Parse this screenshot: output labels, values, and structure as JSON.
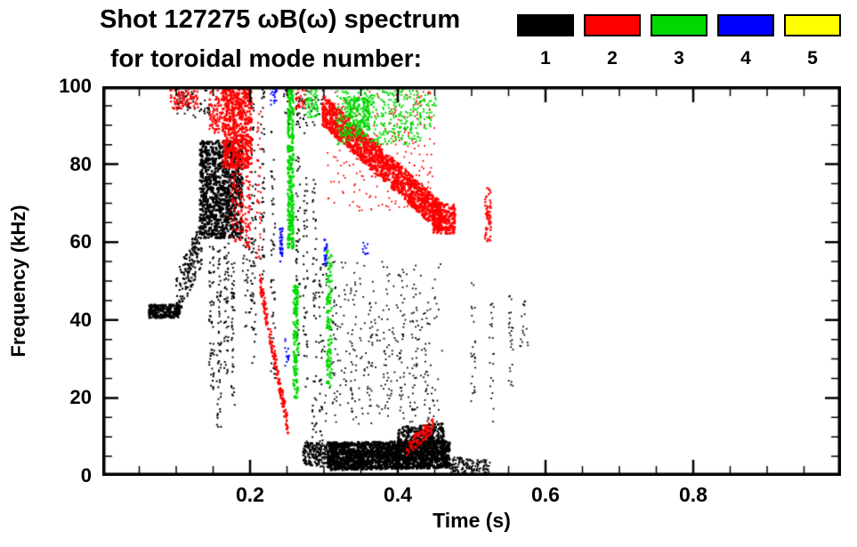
{
  "title": {
    "line1": "Shot 127275 ωB(ω) spectrum",
    "line2": "for toroidal mode number:"
  },
  "chart_data": {
    "type": "scatter",
    "title": "Shot 127275 ωB(ω) spectrum for toroidal mode number",
    "xlabel": "Time (s)",
    "ylabel": "Frequency (kHz)",
    "xlim": [
      0,
      1
    ],
    "ylim": [
      0,
      100
    ],
    "xticks": [
      0.2,
      0.4,
      0.6,
      0.8
    ],
    "xtick_labels": [
      "0.2",
      "0.4",
      "0.6",
      "0.8"
    ],
    "yticks": [
      0,
      20,
      40,
      60,
      80,
      100
    ],
    "ytick_labels": [
      "0",
      "20",
      "40",
      "60",
      "80",
      "100"
    ],
    "xminor_step": 0.05,
    "yminor_step": 5,
    "grid": false,
    "legend_position": "top-right",
    "series": [
      {
        "name": "1",
        "color": "#000000",
        "clusters": [
          {
            "sh": "cloud",
            "t": [
              0.063,
              0.105
            ],
            "f": [
              40.5,
              44
            ],
            "n": 300,
            "s": 2.2
          },
          {
            "sh": "band",
            "t": [
              0.1,
              0.135
            ],
            "fc": [
              46,
              60
            ],
            "w": 12,
            "n": 170,
            "s": 2.2
          },
          {
            "sh": "cloud",
            "t": [
              0.132,
              0.19
            ],
            "f": [
              61,
              86
            ],
            "n": 1000,
            "s": 2.6
          },
          {
            "sh": "cloud",
            "t": [
              0.1,
              0.145
            ],
            "f": [
              92,
              100
            ],
            "n": 70,
            "s": 2
          },
          {
            "sh": "vline",
            "tc": 0.148,
            "f": [
              22,
              60
            ],
            "j": 0.0035,
            "n": 55,
            "s": 2
          },
          {
            "sh": "vline",
            "tc": 0.158,
            "f": [
              12,
              58
            ],
            "j": 0.003,
            "n": 60,
            "s": 2
          },
          {
            "sh": "vline",
            "tc": 0.168,
            "f": [
              25,
              60
            ],
            "j": 0.003,
            "n": 50,
            "s": 2
          },
          {
            "sh": "vline",
            "tc": 0.177,
            "f": [
              18,
              55
            ],
            "j": 0.0025,
            "n": 45,
            "s": 2
          },
          {
            "sh": "cloud",
            "t": [
              0.19,
              0.205
            ],
            "f": [
              38,
              62
            ],
            "n": 45,
            "s": 2
          },
          {
            "sh": "vline",
            "tc": 0.205,
            "f": [
              28,
              96
            ],
            "j": 0.003,
            "n": 55,
            "s": 2
          },
          {
            "sh": "vline",
            "tc": 0.217,
            "f": [
              50,
              100
            ],
            "j": 0.0025,
            "n": 45,
            "s": 2
          },
          {
            "sh": "vline",
            "tc": 0.231,
            "f": [
              25,
              90
            ],
            "j": 0.003,
            "n": 50,
            "s": 2
          },
          {
            "sh": "vline",
            "tc": 0.265,
            "f": [
              30,
              100
            ],
            "j": 0.003,
            "n": 55,
            "s": 2
          },
          {
            "sh": "vline",
            "tc": 0.275,
            "f": [
              22,
              95
            ],
            "j": 0.003,
            "n": 50,
            "s": 2
          },
          {
            "sh": "vline",
            "tc": 0.287,
            "f": [
              8,
              78
            ],
            "j": 0.003,
            "n": 50,
            "s": 2
          },
          {
            "sh": "vline",
            "tc": 0.296,
            "f": [
              5,
              55
            ],
            "j": 0.003,
            "n": 40,
            "s": 2
          },
          {
            "sh": "cloud",
            "t": [
              0.3,
              0.46
            ],
            "f": [
              13,
              55
            ],
            "n": 230,
            "s": 1.8
          },
          {
            "sh": "vline",
            "tc": 0.315,
            "f": [
              15,
              50
            ],
            "j": 0.004,
            "n": 28,
            "s": 1.8
          },
          {
            "sh": "vline",
            "tc": 0.34,
            "f": [
              14,
              48
            ],
            "j": 0.004,
            "n": 26,
            "s": 1.8
          },
          {
            "sh": "vline",
            "tc": 0.362,
            "f": [
              15,
              45
            ],
            "j": 0.004,
            "n": 24,
            "s": 1.8
          },
          {
            "sh": "vline",
            "tc": 0.385,
            "f": [
              15,
              52
            ],
            "j": 0.004,
            "n": 26,
            "s": 1.8
          },
          {
            "sh": "vline",
            "tc": 0.405,
            "f": [
              12,
              55
            ],
            "j": 0.004,
            "n": 30,
            "s": 1.8
          },
          {
            "sh": "vline",
            "tc": 0.423,
            "f": [
              12,
              50
            ],
            "j": 0.004,
            "n": 28,
            "s": 1.8
          },
          {
            "sh": "vline",
            "tc": 0.44,
            "f": [
              14,
              45
            ],
            "j": 0.004,
            "n": 24,
            "s": 1.8
          },
          {
            "sh": "band",
            "t": [
              0.272,
              0.305
            ],
            "fc": [
              6,
              5
            ],
            "w": 6,
            "n": 160,
            "s": 2.2
          },
          {
            "sh": "band",
            "t": [
              0.305,
              0.47
            ],
            "fc": [
              5,
              5.5
            ],
            "w": 7,
            "n": 1600,
            "s": 2.8
          },
          {
            "sh": "band",
            "t": [
              0.4,
              0.462
            ],
            "fc": [
              10,
              11
            ],
            "w": 5,
            "n": 260,
            "s": 2.4
          },
          {
            "sh": "band",
            "t": [
              0.468,
              0.525
            ],
            "fc": [
              3,
              2
            ],
            "w": 4,
            "n": 140,
            "s": 2
          },
          {
            "sh": "vline",
            "tc": 0.502,
            "f": [
              15,
              50
            ],
            "j": 0.003,
            "n": 26,
            "s": 1.8
          },
          {
            "sh": "vline",
            "tc": 0.527,
            "f": [
              12,
              45
            ],
            "j": 0.003,
            "n": 22,
            "s": 1.8
          },
          {
            "sh": "vline",
            "tc": 0.553,
            "f": [
              22,
              48
            ],
            "j": 0.003,
            "n": 26,
            "s": 1.8
          },
          {
            "sh": "cloud",
            "t": [
              0.563,
              0.578
            ],
            "f": [
              33,
              46
            ],
            "n": 18,
            "s": 1.8
          },
          {
            "sh": "cloud",
            "t": [
              0.245,
              0.3
            ],
            "f": [
              90,
              100
            ],
            "n": 50,
            "s": 2
          }
        ]
      },
      {
        "name": "2",
        "color": "#ff0000",
        "clusters": [
          {
            "sh": "cloud",
            "t": [
              0.092,
              0.13
            ],
            "f": [
              94,
              100
            ],
            "n": 90,
            "s": 2.2
          },
          {
            "sh": "cloud",
            "t": [
              0.145,
              0.163
            ],
            "f": [
              88,
              99
            ],
            "n": 90,
            "s": 2.2
          },
          {
            "sh": "cloud",
            "t": [
              0.163,
              0.202
            ],
            "f": [
              79,
              100
            ],
            "n": 600,
            "s": 2.6
          },
          {
            "sh": "vline",
            "tc": 0.197,
            "f": [
              58,
              82
            ],
            "j": 0.0035,
            "n": 60,
            "s": 2.2
          },
          {
            "sh": "cloud",
            "t": [
              0.172,
              0.192
            ],
            "f": [
              60,
              79
            ],
            "n": 80,
            "s": 2.2
          },
          {
            "sh": "vline",
            "tc": 0.212,
            "f": [
              55,
              95
            ],
            "j": 0.0025,
            "n": 40,
            "s": 2
          },
          {
            "sh": "band",
            "t": [
              0.213,
              0.252
            ],
            "fc": [
              50,
              12
            ],
            "w": 5,
            "n": 190,
            "s": 2.3
          },
          {
            "sh": "cloud",
            "t": [
              0.262,
              0.275
            ],
            "f": [
              94,
              100
            ],
            "n": 40,
            "s": 2
          },
          {
            "sh": "band",
            "t": [
              0.298,
              0.46
            ],
            "fc": [
              94,
              66
            ],
            "w": 8,
            "n": 1300,
            "s": 2.6
          },
          {
            "sh": "cloud",
            "t": [
              0.305,
              0.45
            ],
            "f": [
              68,
              100
            ],
            "n": 260,
            "s": 1.8
          },
          {
            "sh": "cloud",
            "t": [
              0.448,
              0.478
            ],
            "f": [
              62,
              70
            ],
            "n": 200,
            "s": 2.5
          },
          {
            "sh": "vline",
            "tc": 0.522,
            "f": [
              60,
              74
            ],
            "j": 0.004,
            "n": 55,
            "s": 2.3
          },
          {
            "sh": "band",
            "t": [
              0.412,
              0.448
            ],
            "fc": [
              7,
              13
            ],
            "w": 4,
            "n": 110,
            "s": 2.2
          }
        ]
      },
      {
        "name": "3",
        "color": "#00d900",
        "clusters": [
          {
            "sh": "vline",
            "tc": 0.255,
            "f": [
              58,
              100
            ],
            "j": 0.004,
            "n": 260,
            "s": 2.6
          },
          {
            "sh": "vline",
            "tc": 0.262,
            "f": [
              20,
              50
            ],
            "j": 0.0035,
            "n": 140,
            "s": 2.5
          },
          {
            "sh": "cloud",
            "t": [
              0.275,
              0.292
            ],
            "f": [
              92,
              100
            ],
            "n": 60,
            "s": 2.2
          },
          {
            "sh": "vline",
            "tc": 0.307,
            "f": [
              22,
              58
            ],
            "j": 0.0035,
            "n": 130,
            "s": 2.4
          },
          {
            "sh": "cloud",
            "t": [
              0.318,
              0.432
            ],
            "f": [
              85,
              100
            ],
            "n": 420,
            "s": 2
          },
          {
            "sh": "cloud",
            "t": [
              0.328,
              0.362
            ],
            "f": [
              87,
              97
            ],
            "n": 180,
            "s": 2.2
          },
          {
            "sh": "cloud",
            "t": [
              0.43,
              0.452
            ],
            "f": [
              89,
              98
            ],
            "n": 40,
            "s": 2
          }
        ]
      },
      {
        "name": "4",
        "color": "#0000ff",
        "clusters": [
          {
            "sh": "vline",
            "tc": 0.2425,
            "f": [
              55,
              64
            ],
            "j": 0.002,
            "n": 30,
            "s": 2.2
          },
          {
            "sh": "cloud",
            "t": [
              0.227,
              0.237
            ],
            "f": [
              95,
              100
            ],
            "n": 22,
            "s": 2
          },
          {
            "sh": "vline",
            "tc": 0.302,
            "f": [
              54,
              61
            ],
            "j": 0.002,
            "n": 20,
            "s": 2.2
          },
          {
            "sh": "cloud",
            "t": [
              0.247,
              0.253
            ],
            "f": [
              28,
              36
            ],
            "n": 14,
            "s": 2
          },
          {
            "sh": "cloud",
            "t": [
              0.352,
              0.36
            ],
            "f": [
              55,
              60
            ],
            "n": 10,
            "s": 2
          }
        ]
      },
      {
        "name": "5",
        "color": "#ffff00",
        "clusters": []
      }
    ]
  }
}
